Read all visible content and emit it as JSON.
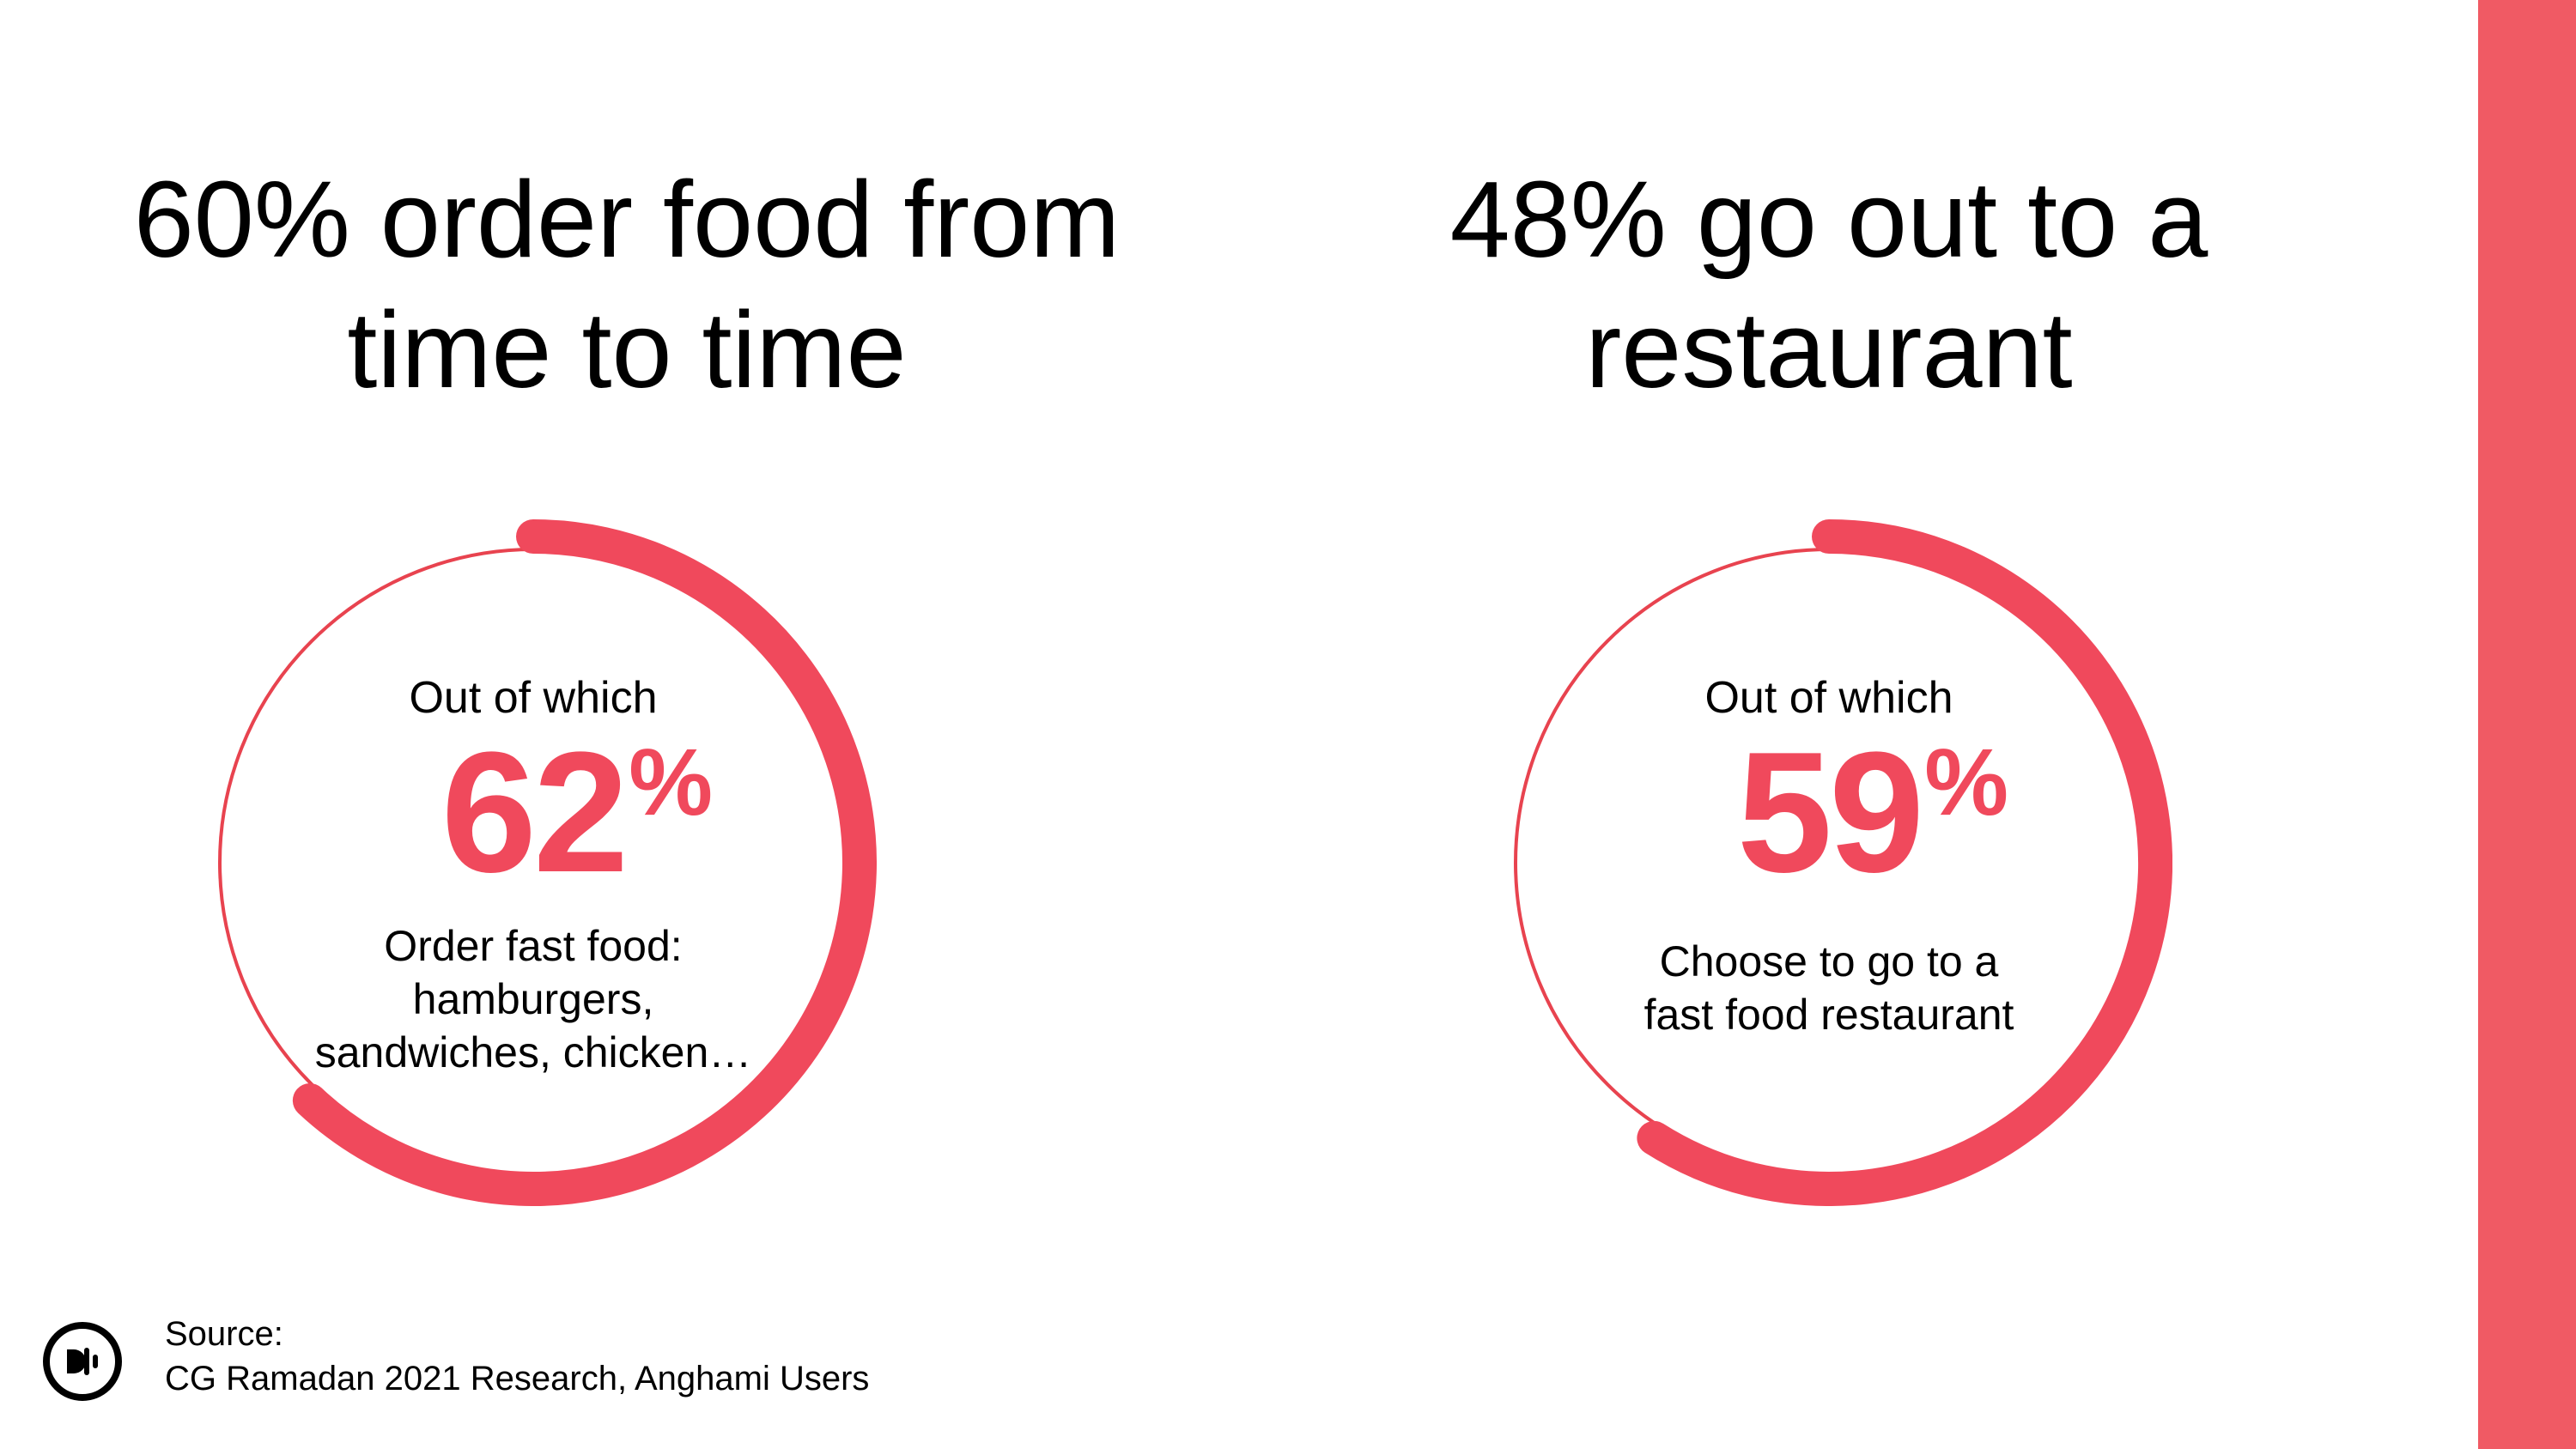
{
  "colors": {
    "accent": "#f0495c",
    "side_bar": "#f05a64",
    "track": "#e8434f",
    "text": "#000000"
  },
  "headlines": [
    {
      "lines": [
        "60% order food from",
        "time to time"
      ]
    },
    {
      "lines": [
        "48% go out to a",
        "restaurant"
      ]
    }
  ],
  "chart_data": [
    {
      "type": "pie",
      "intro": "Out of which",
      "value": 62,
      "value_text": "62",
      "unit": "%",
      "description_lines": [
        "Order fast food:",
        "hamburgers,",
        "sandwiches, chicken…"
      ]
    },
    {
      "type": "pie",
      "intro": "Out of which",
      "value": 59,
      "value_text": "59",
      "unit": "%",
      "description_lines": [
        "Choose to go to a",
        "fast food restaurant"
      ]
    }
  ],
  "footer": {
    "source_lines": [
      "Source:",
      "CG Ramadan 2021 Research, Anghami Users"
    ],
    "logo_icon": "anghami-logo-icon"
  }
}
